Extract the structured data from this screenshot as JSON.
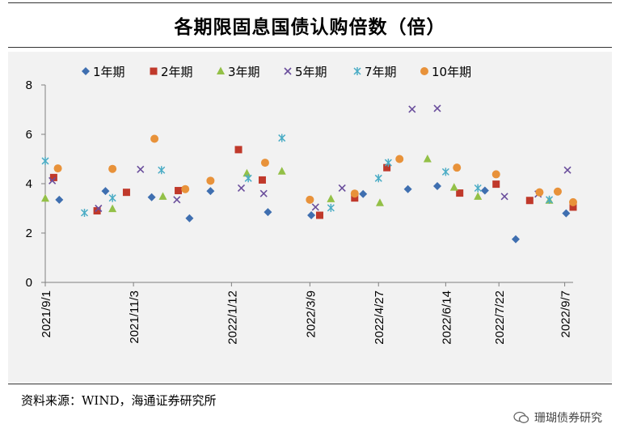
{
  "page": {
    "title": "各期限固息国债认购倍数（倍）",
    "source": "资料来源：WIND，海通证券研究所",
    "watermark": "珊瑚债券研究"
  },
  "chart_data": {
    "type": "scatter",
    "title": "各期限固息国债认购倍数（倍）",
    "xlabel": "",
    "ylabel": "",
    "ylim": [
      0,
      8
    ],
    "yticks": [
      0,
      2,
      4,
      6,
      8
    ],
    "xticks": [
      "2021/9/1",
      "2021/11/3",
      "2022/1/12",
      "2022/3/9",
      "2022/4/27",
      "2022/6/14",
      "2022/7/22",
      "2022/9/7"
    ],
    "xrange": [
      "2021/9/1",
      "2022/9/13"
    ],
    "legend_position": "top",
    "grid": false,
    "series": [
      {
        "name": "1年期",
        "marker": "diamond",
        "color": "#3f6fb0",
        "points": [
          [
            "2021/9/11",
            3.35
          ],
          [
            "2021/10/14",
            3.7
          ],
          [
            "2021/11/16",
            3.45
          ],
          [
            "2021/12/13",
            2.6
          ],
          [
            "2021/12/28",
            3.7
          ],
          [
            "2022/2/7",
            2.85
          ],
          [
            "2022/3/10",
            2.72
          ],
          [
            "2022/4/16",
            3.58
          ],
          [
            "2022/5/18",
            3.78
          ],
          [
            "2022/6/8",
            3.9
          ],
          [
            "2022/7/12",
            3.72
          ],
          [
            "2022/8/3",
            1.75
          ],
          [
            "2022/9/8",
            2.8
          ]
        ]
      },
      {
        "name": "2年期",
        "marker": "square",
        "color": "#c0392b",
        "points": [
          [
            "2021/9/7",
            4.25
          ],
          [
            "2021/10/8",
            2.9
          ],
          [
            "2021/10/29",
            3.65
          ],
          [
            "2021/12/5",
            3.72
          ],
          [
            "2022/1/17",
            5.38
          ],
          [
            "2022/2/3",
            4.15
          ],
          [
            "2022/3/16",
            2.72
          ],
          [
            "2022/4/10",
            3.42
          ],
          [
            "2022/5/3",
            4.65
          ],
          [
            "2022/6/24",
            3.62
          ],
          [
            "2022/7/20",
            3.98
          ],
          [
            "2022/8/13",
            3.32
          ],
          [
            "2022/9/13",
            3.05
          ]
        ]
      },
      {
        "name": "3年期",
        "marker": "triangle",
        "color": "#93c047",
        "points": [
          [
            "2021/9/1",
            3.4
          ],
          [
            "2021/10/19",
            2.98
          ],
          [
            "2021/11/24",
            3.48
          ],
          [
            "2022/1/23",
            4.42
          ],
          [
            "2022/2/17",
            4.5
          ],
          [
            "2022/3/24",
            3.38
          ],
          [
            "2022/4/28",
            3.22
          ],
          [
            "2022/6/1",
            5.0
          ],
          [
            "2022/6/20",
            3.85
          ],
          [
            "2022/7/7",
            3.48
          ],
          [
            "2022/8/27",
            3.32
          ]
        ]
      },
      {
        "name": "5年期",
        "marker": "x",
        "color": "#6a4e9c",
        "points": [
          [
            "2021/9/6",
            4.12
          ],
          [
            "2021/10/9",
            3.0
          ],
          [
            "2021/11/8",
            4.58
          ],
          [
            "2021/12/4",
            3.35
          ],
          [
            "2022/1/19",
            3.82
          ],
          [
            "2022/2/4",
            3.6
          ],
          [
            "2022/3/13",
            3.05
          ],
          [
            "2022/4/1",
            3.82
          ],
          [
            "2022/5/21",
            7.02
          ],
          [
            "2022/6/8",
            7.05
          ],
          [
            "2022/7/26",
            3.48
          ],
          [
            "2022/8/19",
            3.58
          ],
          [
            "2022/9/9",
            4.55
          ]
        ]
      },
      {
        "name": "7年期",
        "marker": "star",
        "color": "#4aacc5",
        "points": [
          [
            "2021/9/1",
            4.92
          ],
          [
            "2021/9/29",
            2.82
          ],
          [
            "2021/10/19",
            3.42
          ],
          [
            "2021/11/23",
            4.55
          ],
          [
            "2022/1/24",
            4.22
          ],
          [
            "2022/2/17",
            5.85
          ],
          [
            "2022/3/24",
            3.02
          ],
          [
            "2022/4/27",
            4.22
          ],
          [
            "2022/5/4",
            4.85
          ],
          [
            "2022/6/14",
            4.48
          ],
          [
            "2022/7/7",
            3.82
          ],
          [
            "2022/8/27",
            3.35
          ]
        ]
      },
      {
        "name": "10年期",
        "marker": "circle",
        "color": "#e8923a",
        "points": [
          [
            "2021/9/10",
            4.62
          ],
          [
            "2021/10/19",
            4.6
          ],
          [
            "2021/11/18",
            5.82
          ],
          [
            "2021/12/10",
            3.78
          ],
          [
            "2021/12/28",
            4.12
          ],
          [
            "2022/2/5",
            4.85
          ],
          [
            "2022/3/9",
            3.35
          ],
          [
            "2022/4/10",
            3.6
          ],
          [
            "2022/5/12",
            5.0
          ],
          [
            "2022/6/22",
            4.65
          ],
          [
            "2022/7/20",
            4.38
          ],
          [
            "2022/8/20",
            3.65
          ],
          [
            "2022/9/2",
            3.68
          ],
          [
            "2022/9/13",
            3.25
          ]
        ]
      }
    ]
  }
}
